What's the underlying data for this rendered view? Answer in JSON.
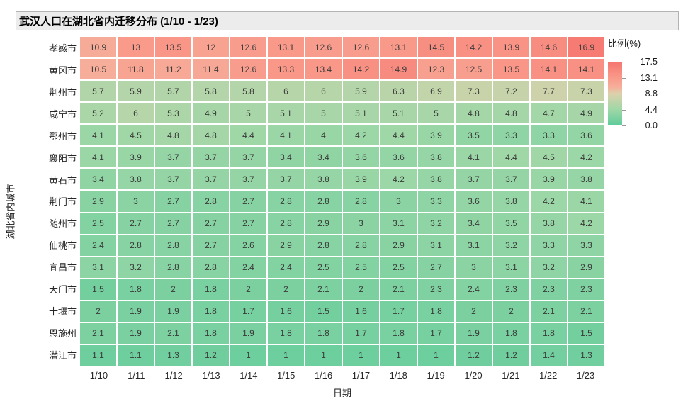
{
  "chart_data": {
    "type": "heatmap",
    "title": "武汉人口在湖北省内迁移分布 (1/10 - 1/23)",
    "xlabel": "日期",
    "ylabel": "湖北省内城市",
    "x": [
      "1/10",
      "1/11",
      "1/12",
      "1/13",
      "1/14",
      "1/15",
      "1/16",
      "1/17",
      "1/18",
      "1/19",
      "1/20",
      "1/21",
      "1/22",
      "1/23"
    ],
    "y": [
      "孝感市",
      "黄冈市",
      "荆州市",
      "咸宁市",
      "鄂州市",
      "襄阳市",
      "黄石市",
      "荆门市",
      "随州市",
      "仙桃市",
      "宜昌市",
      "天门市",
      "十堰市",
      "恩施州",
      "潜江市"
    ],
    "series": [
      {
        "name": "孝感市",
        "values": [
          10.9,
          13,
          13.5,
          12,
          12.6,
          13.1,
          12.6,
          12.6,
          13.1,
          14.5,
          14.2,
          13.9,
          14.6,
          16.9
        ]
      },
      {
        "name": "黄冈市",
        "values": [
          10.5,
          11.8,
          11.2,
          11.4,
          12.6,
          13.3,
          13.4,
          14.2,
          14.9,
          12.3,
          12.5,
          13.5,
          14.1,
          14.1
        ]
      },
      {
        "name": "荆州市",
        "values": [
          5.7,
          5.9,
          5.7,
          5.8,
          5.8,
          6,
          6,
          5.9,
          6.3,
          6.9,
          7.3,
          7.2,
          7.7,
          7.3
        ]
      },
      {
        "name": "咸宁市",
        "values": [
          5.2,
          6,
          5.3,
          4.9,
          5,
          5.1,
          5,
          5.1,
          5.1,
          5,
          4.8,
          4.8,
          4.7,
          4.9
        ]
      },
      {
        "name": "鄂州市",
        "values": [
          4.1,
          4.5,
          4.8,
          4.8,
          4.4,
          4.1,
          4,
          4.2,
          4.4,
          3.9,
          3.5,
          3.3,
          3.3,
          3.6
        ]
      },
      {
        "name": "襄阳市",
        "values": [
          4.1,
          3.9,
          3.7,
          3.7,
          3.7,
          3.4,
          3.4,
          3.6,
          3.6,
          3.8,
          4.1,
          4.4,
          4.5,
          4.2
        ]
      },
      {
        "name": "黄石市",
        "values": [
          3.4,
          3.8,
          3.7,
          3.7,
          3.7,
          3.7,
          3.8,
          3.9,
          4.2,
          3.8,
          3.7,
          3.7,
          3.9,
          3.8
        ]
      },
      {
        "name": "荆门市",
        "values": [
          2.9,
          3,
          2.7,
          2.8,
          2.7,
          2.8,
          2.8,
          2.8,
          3,
          3.3,
          3.6,
          3.8,
          4.2,
          4.1
        ]
      },
      {
        "name": "随州市",
        "values": [
          2.5,
          2.7,
          2.7,
          2.7,
          2.7,
          2.8,
          2.9,
          3,
          3.1,
          3.2,
          3.4,
          3.5,
          3.8,
          4.2
        ]
      },
      {
        "name": "仙桃市",
        "values": [
          2.4,
          2.8,
          2.8,
          2.7,
          2.6,
          2.9,
          2.8,
          2.8,
          2.9,
          3.1,
          3.1,
          3.2,
          3.3,
          3.3
        ]
      },
      {
        "name": "宜昌市",
        "values": [
          3.1,
          3.2,
          2.8,
          2.8,
          2.4,
          2.4,
          2.5,
          2.5,
          2.5,
          2.7,
          3,
          3.1,
          3.2,
          2.9
        ]
      },
      {
        "name": "天门市",
        "values": [
          1.5,
          1.8,
          2,
          1.8,
          2,
          2,
          2.1,
          2,
          2.1,
          2.3,
          2.4,
          2.3,
          2.3,
          2.3
        ]
      },
      {
        "name": "十堰市",
        "values": [
          2,
          1.9,
          1.9,
          1.8,
          1.7,
          1.6,
          1.5,
          1.6,
          1.7,
          1.8,
          2,
          2,
          2.1,
          2.1
        ]
      },
      {
        "name": "恩施州",
        "values": [
          2.1,
          1.9,
          2.1,
          1.8,
          1.9,
          1.8,
          1.8,
          1.7,
          1.8,
          1.7,
          1.9,
          1.8,
          1.8,
          1.5
        ]
      },
      {
        "name": "潜江市",
        "values": [
          1.1,
          1.1,
          1.3,
          1.2,
          1,
          1,
          1,
          1,
          1,
          1,
          1.2,
          1.2,
          1.4,
          1.3
        ]
      }
    ],
    "colorbar": {
      "label": "比例(%)",
      "range": [
        0,
        17.5
      ],
      "tick_labels": [
        "17.5",
        "13.1",
        "8.8",
        "4.4",
        "0.0"
      ],
      "stops": [
        [
          0.0,
          [
            94,
            203,
            155
          ]
        ],
        [
          0.25,
          [
            159,
            215,
            167
          ]
        ],
        [
          0.5,
          [
            220,
            209,
            172
          ]
        ],
        [
          0.6,
          [
            246,
            174,
            154
          ]
        ],
        [
          0.75,
          [
            249,
            153,
            138
          ]
        ],
        [
          1.0,
          [
            244,
            118,
            111
          ]
        ]
      ]
    },
    "layout": {
      "grid": "off",
      "legend_position": "right",
      "cell_gap_color": "#ffffff"
    }
  }
}
